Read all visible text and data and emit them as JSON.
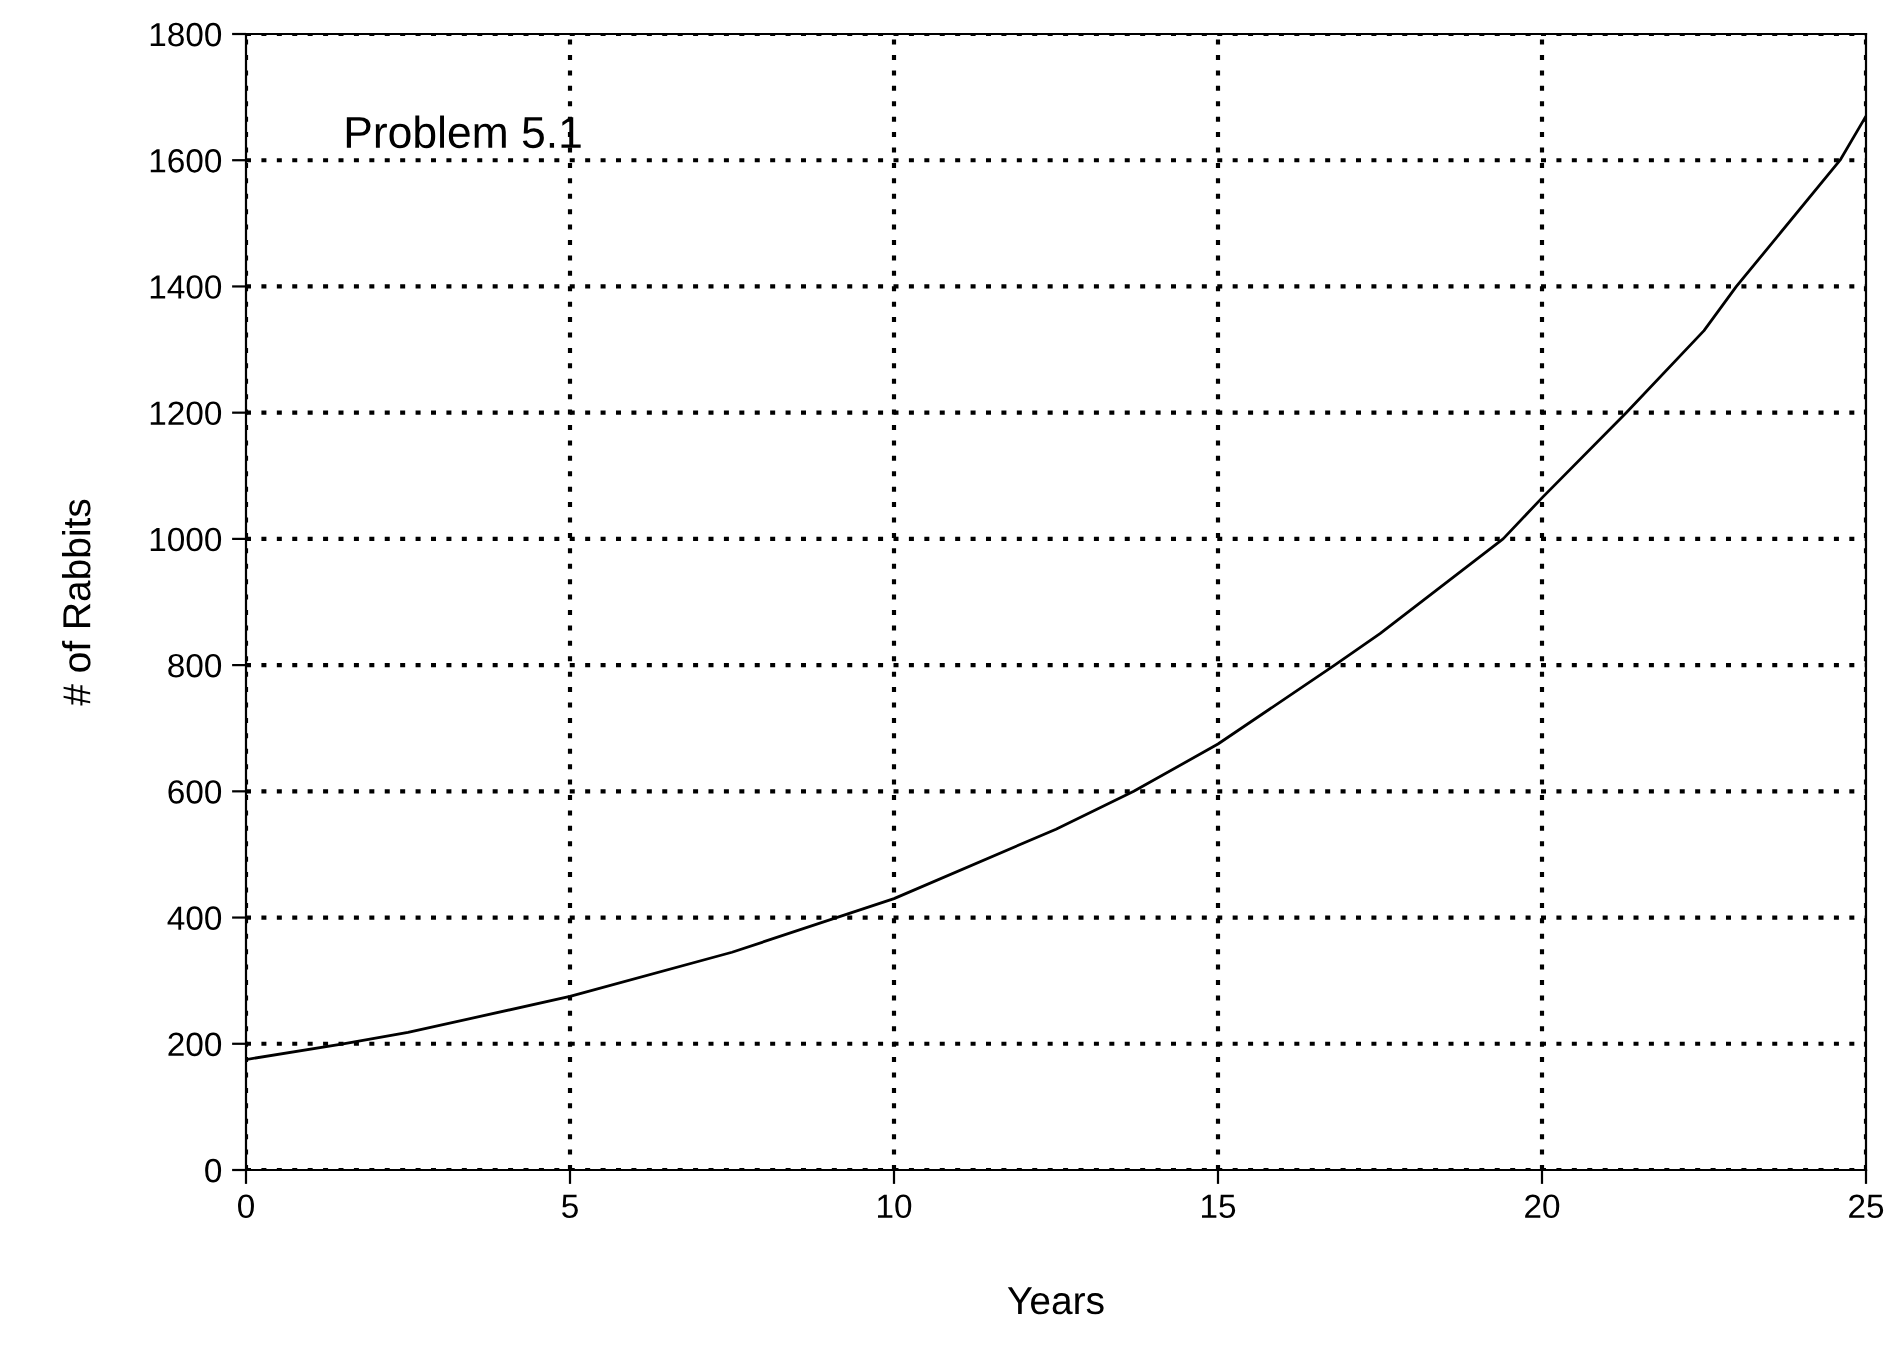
{
  "chart_data": {
    "type": "line",
    "xlabel": "Years",
    "ylabel": "# of Rabbits",
    "annotations": [
      "Problem 5.1"
    ],
    "x": [
      0,
      1.5,
      2.5,
      5,
      7.5,
      10,
      12.5,
      13.7,
      15,
      16.8,
      17.5,
      19.4,
      20,
      21.3,
      22.5,
      23,
      24.6,
      25
    ],
    "series": [
      {
        "color": "#000000",
        "values": [
          175,
          200,
          218,
          275,
          345,
          430,
          540,
          600,
          675,
          800,
          850,
          1000,
          1065,
          1200,
          1330,
          1400,
          1600,
          1670
        ]
      }
    ],
    "xlim": [
      0,
      25
    ],
    "xticks": [
      0,
      5,
      10,
      15,
      20,
      25
    ],
    "ylim": [
      0,
      1800
    ],
    "yticks": [
      0,
      200,
      400,
      600,
      800,
      1000,
      1200,
      1400,
      1600,
      1800
    ],
    "grid": true,
    "legend": false,
    "marker": "none",
    "line_style": "solid"
  }
}
